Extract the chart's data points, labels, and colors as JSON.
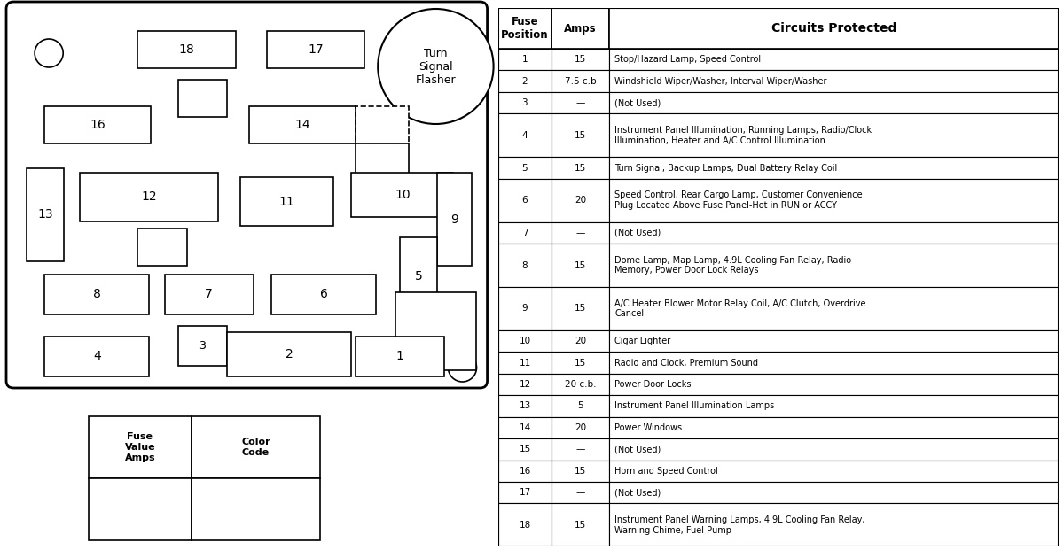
{
  "bg_color": "#ffffff",
  "border_color": "#000000",
  "table_data": [
    [
      "1",
      "15",
      "Stop/Hazard Lamp, Speed Control"
    ],
    [
      "2",
      "7.5 c.b",
      "Windshield Wiper/Washer, Interval Wiper/Washer"
    ],
    [
      "3",
      "—",
      "(Not Used)"
    ],
    [
      "4",
      "15",
      "Instrument Panel Illumination, Running Lamps, Radio/Clock\nIllumination, Heater and A/C Control Illumination"
    ],
    [
      "5",
      "15",
      "Turn Signal, Backup Lamps, Dual Battery Relay Coil"
    ],
    [
      "6",
      "20",
      "Speed Control, Rear Cargo Lamp, Customer Convenience\nPlug Located Above Fuse Panel-Hot in RUN or ACCY"
    ],
    [
      "7",
      "—",
      "(Not Used)"
    ],
    [
      "8",
      "15",
      "Dome Lamp, Map Lamp, 4.9L Cooling Fan Relay, Radio\nMemory, Power Door Lock Relays"
    ],
    [
      "9",
      "15",
      "A/C Heater Blower Motor Relay Coil, A/C Clutch, Overdrive\nCancel"
    ],
    [
      "10",
      "20",
      "Cigar Lighter"
    ],
    [
      "11",
      "15",
      "Radio and Clock, Premium Sound"
    ],
    [
      "12",
      "20 c.b.",
      "Power Door Locks"
    ],
    [
      "13",
      "5",
      "Instrument Panel Illumination Lamps"
    ],
    [
      "14",
      "20",
      "Power Windows"
    ],
    [
      "15",
      "—",
      "(Not Used)"
    ],
    [
      "16",
      "15",
      "Horn and Speed Control"
    ],
    [
      "17",
      "—",
      "(Not Used)"
    ],
    [
      "18",
      "15",
      "Instrument Panel Warning Lamps, 4.9L Cooling Fan Relay,\nWarning Chime, Fuel Pump"
    ]
  ],
  "col_headers": [
    "Fuse\nPosition",
    "Amps",
    "Circuits Protected"
  ],
  "row_lines": [
    1,
    1,
    1,
    2,
    1,
    2,
    1,
    2,
    2,
    1,
    1,
    1,
    1,
    1,
    1,
    1,
    1,
    2
  ]
}
